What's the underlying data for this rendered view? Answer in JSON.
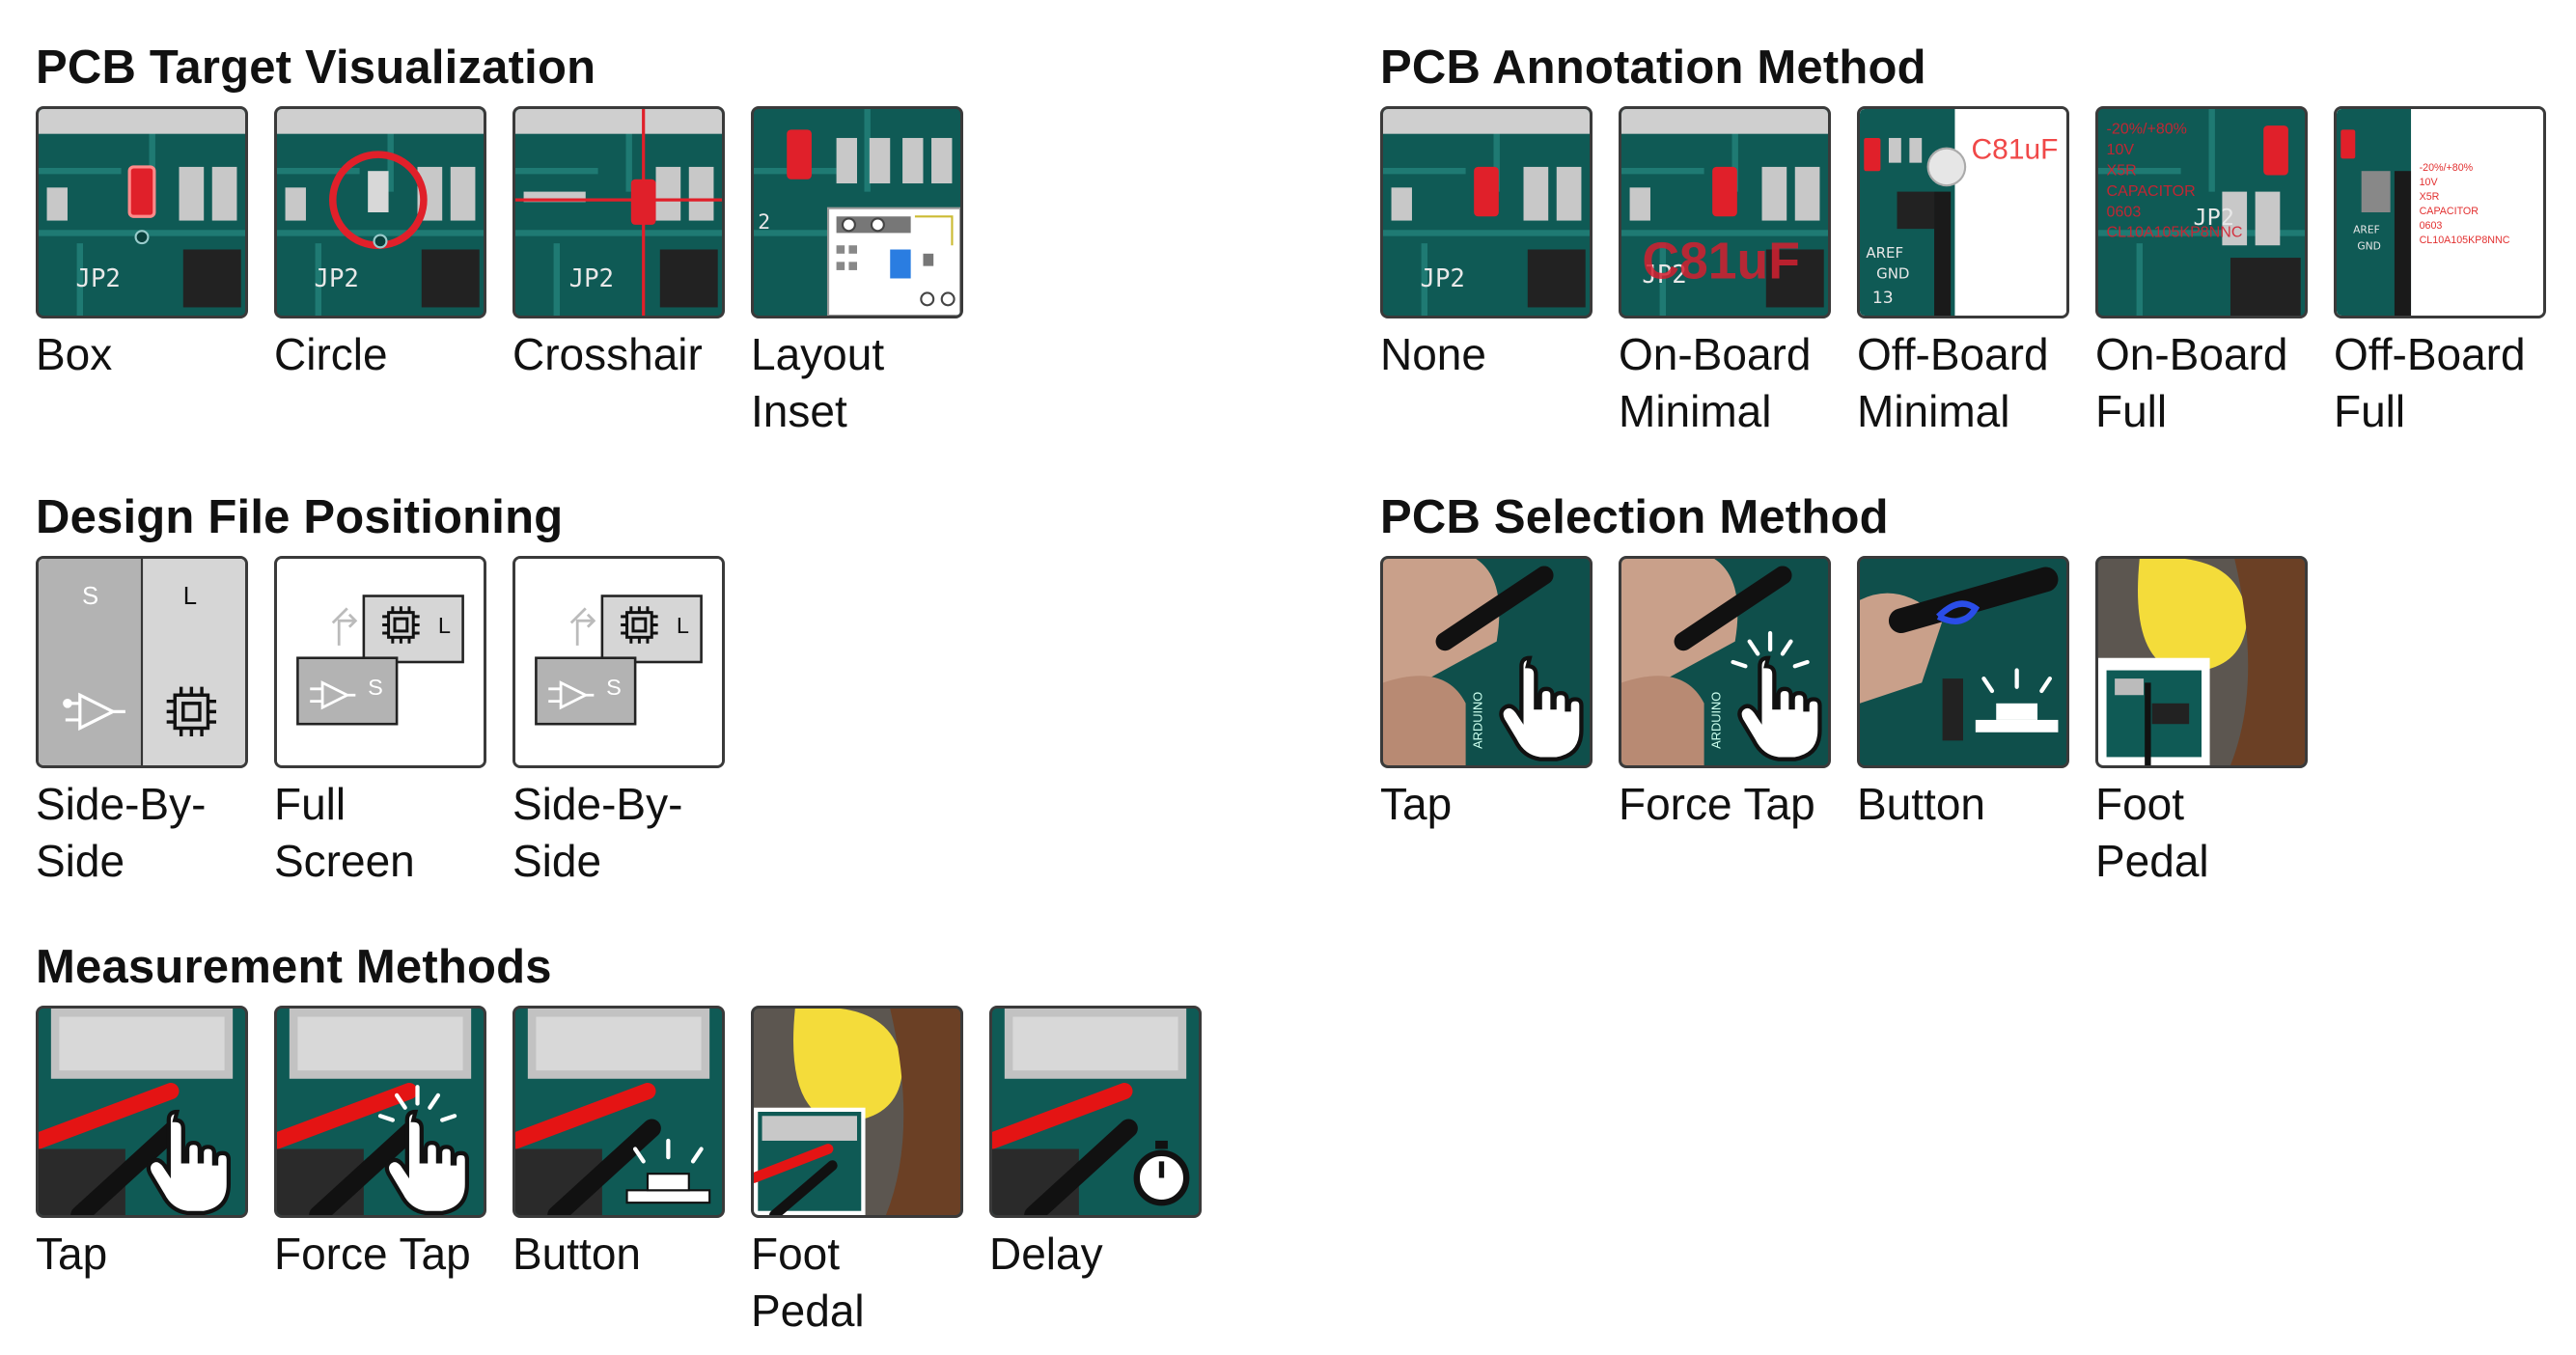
{
  "sections": {
    "target": {
      "title": "PCB Target Visualization",
      "items": [
        {
          "label": "Box",
          "icon": "pcb-box-highlight"
        },
        {
          "label": "Circle",
          "icon": "pcb-circle-highlight"
        },
        {
          "label": "Crosshair",
          "icon": "pcb-crosshair-highlight"
        },
        {
          "label": "Layout Inset",
          "icon": "pcb-layout-inset"
        }
      ],
      "board_label": "JP2"
    },
    "annotation": {
      "title": "PCB Annotation Method",
      "items": [
        {
          "label": "None",
          "icon": "pcb-plain"
        },
        {
          "label": "On-Board Minimal",
          "icon": "pcb-annotation-onboard-minimal"
        },
        {
          "label": "Off-Board Minimal",
          "icon": "pcb-annotation-offboard-minimal"
        },
        {
          "label": "On-Board Full",
          "icon": "pcb-annotation-onboard-full"
        },
        {
          "label": "Off-Board Full",
          "icon": "pcb-annotation-offboard-full"
        }
      ],
      "part_value": "C81uF",
      "full_lines": [
        "-20%/+80%",
        "10V",
        "X5R",
        "CAPACITOR",
        "0603",
        "CL10A105KP8NNC"
      ],
      "header_labels": [
        "AREF",
        "GND",
        "13"
      ]
    },
    "design": {
      "title": "Design File Positioning",
      "items": [
        {
          "label": "Side-By-Side",
          "icon": "split-schematic-layout"
        },
        {
          "label": "Full Screen",
          "icon": "overlapping-schematic-layout"
        },
        {
          "label": "Side-By-Side",
          "icon": "overlapping-schematic-layout-alt"
        }
      ],
      "schematic_letter": "S",
      "layout_letter": "L"
    },
    "selection": {
      "title": "PCB Selection Method",
      "items": [
        {
          "label": "Tap",
          "icon": "hand-tap-icon"
        },
        {
          "label": "Force Tap",
          "icon": "hand-force-tap-icon"
        },
        {
          "label": "Button",
          "icon": "button-press-icon"
        },
        {
          "label": "Foot Pedal",
          "icon": "foot-pedal-icon"
        }
      ],
      "board_text": "ARDUINO"
    },
    "measurement": {
      "title": "Measurement Methods",
      "items": [
        {
          "label": "Tap",
          "icon": "probe-tap-icon"
        },
        {
          "label": "Force Tap",
          "icon": "probe-force-tap-icon"
        },
        {
          "label": "Button",
          "icon": "probe-button-icon"
        },
        {
          "label": "Foot Pedal",
          "icon": "probe-foot-pedal-icon"
        },
        {
          "label": "Delay",
          "icon": "probe-delay-timer-icon"
        }
      ]
    }
  },
  "colors": {
    "pcb": "#0f5a55",
    "pcb_trace": "#1f7a73",
    "highlight": "#e0202a",
    "probe_red": "#e41414",
    "schematic_gray": "#b3b3b3",
    "layout_gray": "#d6d6d6",
    "pedal_yellow": "#f4dc3a",
    "shoe_brown": "#6b4025"
  }
}
